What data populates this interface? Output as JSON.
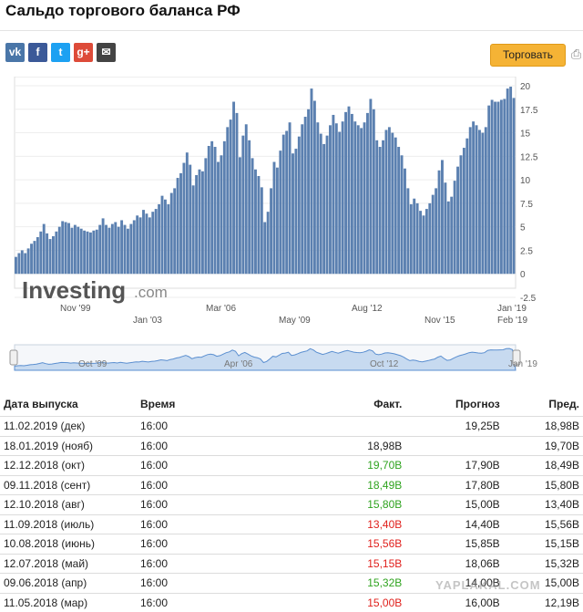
{
  "page": {
    "title": "Сальдо торгового баланса РФ",
    "trade_button": "Торговать"
  },
  "share_icons": [
    "vk-icon",
    "facebook-icon",
    "twitter-icon",
    "google-plus-icon",
    "email-icon"
  ],
  "colors": {
    "bars": "#5b80b0",
    "accent_button": "#f5b335",
    "positive": "#2fa31f",
    "negative": "#e0201c"
  },
  "chart_data": {
    "type": "bar",
    "ylim": [
      -2.5,
      20
    ],
    "y_ticks": [
      "20",
      "17.5",
      "15",
      "12.5",
      "10",
      "7.5",
      "5",
      "2.5",
      "0",
      "-2.5"
    ],
    "x_labels_row1": [
      "Nov '99",
      "Mar '06",
      "Aug '12",
      "Jan '19"
    ],
    "x_labels_row2": [
      "Jan '03",
      "May '09",
      "Nov '15",
      "Feb '19"
    ],
    "navigator_labels": [
      "Oct '99",
      "Apr '06",
      "Oct '12",
      "Jan '19"
    ],
    "logo_text": "Investing",
    "logo_suffix": ".com",
    "values": [
      1.8,
      2.2,
      2.5,
      2.2,
      2.7,
      3.2,
      3.5,
      3.9,
      4.5,
      5.3,
      4.3,
      3.7,
      4.0,
      4.5,
      5.0,
      5.6,
      5.5,
      5.4,
      4.9,
      5.2,
      5.0,
      4.8,
      4.6,
      4.5,
      4.4,
      4.6,
      4.7,
      5.2,
      5.9,
      5.2,
      4.9,
      5.3,
      5.5,
      5.0,
      5.7,
      5.2,
      4.8,
      5.3,
      5.7,
      6.2,
      6.0,
      6.8,
      6.4,
      6.0,
      6.6,
      6.9,
      7.4,
      8.3,
      7.9,
      7.4,
      8.6,
      9.1,
      10.2,
      10.7,
      11.8,
      12.9,
      11.6,
      9.4,
      10.5,
      11.1,
      10.9,
      12.3,
      13.6,
      14.1,
      13.5,
      11.9,
      12.6,
      14.1,
      15.6,
      16.4,
      18.3,
      17.1,
      12.4,
      14.7,
      15.9,
      14.2,
      12.3,
      11.1,
      10.4,
      9.2,
      5.5,
      6.6,
      9.1,
      11.9,
      11.3,
      13.1,
      14.8,
      15.2,
      16.1,
      12.8,
      13.3,
      14.6,
      15.9,
      16.7,
      17.5,
      19.7,
      18.4,
      16.1,
      14.9,
      13.8,
      14.7,
      15.8,
      16.9,
      16.0,
      15.1,
      16.2,
      17.2,
      17.8,
      17.0,
      16.2,
      15.8,
      15.5,
      16.1,
      17.1,
      18.6,
      17.5,
      14.2,
      13.5,
      14.2,
      15.3,
      15.6,
      15.0,
      14.5,
      13.5,
      12.6,
      11.2,
      9.1,
      7.4,
      8.0,
      7.5,
      6.7,
      6.2,
      6.9,
      7.5,
      8.4,
      9.1,
      11.0,
      12.1,
      9.7,
      7.7,
      8.2,
      9.9,
      11.4,
      12.6,
      13.4,
      14.4,
      15.6,
      16.2,
      15.8,
      15.3,
      15.0,
      15.6,
      17.9,
      18.5,
      18.3,
      18.3,
      18.5,
      18.6,
      19.7,
      19.9,
      18.7
    ]
  },
  "table": {
    "headers": {
      "date": "Дата выпуска",
      "time": "Время",
      "actual": "Факт.",
      "forecast": "Прогноз",
      "previous": "Пред."
    },
    "rows": [
      {
        "date": "11.02.2019 (дек)",
        "time": "16:00",
        "actual": "",
        "forecast": "19,25B",
        "previous": "18,98B",
        "status": ""
      },
      {
        "date": "18.01.2019 (нояб)",
        "time": "16:00",
        "actual": "18,98B",
        "forecast": "",
        "previous": "19,70B",
        "status": ""
      },
      {
        "date": "12.12.2018 (окт)",
        "time": "16:00",
        "actual": "19,70B",
        "forecast": "17,90B",
        "previous": "18,49B",
        "status": "green"
      },
      {
        "date": "09.11.2018 (сент)",
        "time": "16:00",
        "actual": "18,49B",
        "forecast": "17,80B",
        "previous": "15,80B",
        "status": "green"
      },
      {
        "date": "12.10.2018 (авг)",
        "time": "16:00",
        "actual": "15,80B",
        "forecast": "15,00B",
        "previous": "13,40B",
        "status": "green"
      },
      {
        "date": "11.09.2018 (июль)",
        "time": "16:00",
        "actual": "13,40B",
        "forecast": "14,40B",
        "previous": "15,56B",
        "status": "red"
      },
      {
        "date": "10.08.2018 (июнь)",
        "time": "16:00",
        "actual": "15,56B",
        "forecast": "15,85B",
        "previous": "15,15B",
        "status": "red"
      },
      {
        "date": "12.07.2018 (май)",
        "time": "16:00",
        "actual": "15,15B",
        "forecast": "18,06B",
        "previous": "15,32B",
        "status": "red"
      },
      {
        "date": "09.06.2018 (апр)",
        "time": "16:00",
        "actual": "15,32B",
        "forecast": "14,00B",
        "previous": "15,00B",
        "status": "green"
      },
      {
        "date": "11.05.2018 (мар)",
        "time": "16:00",
        "actual": "15,00B",
        "forecast": "16,00B",
        "previous": "12,19B",
        "status": "red"
      }
    ]
  },
  "watermark": "YAPLAKAL.COM"
}
